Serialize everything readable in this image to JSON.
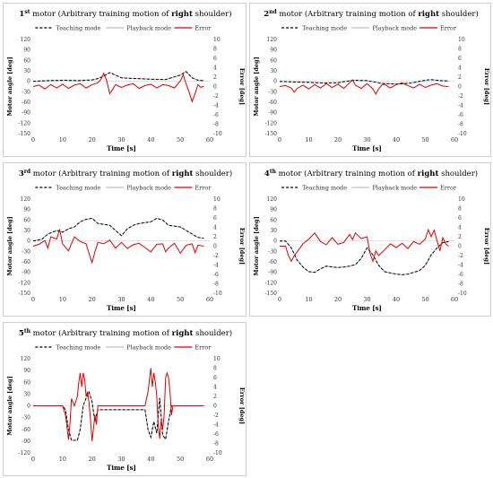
{
  "charts": [
    {
      "type": "line",
      "title_ordinal": "1",
      "title_sup": "st",
      "title_pre": " motor (Arbitrary training motion of ",
      "title_bold": "right",
      "title_post": " shoulder)",
      "xlabel": "Time [s]",
      "ylabel": "Motor angle [deg]",
      "y2label": "Error [deg]",
      "xlim": [
        0,
        60
      ],
      "ylim": [
        -150,
        120
      ],
      "y2lim": [
        -10,
        10
      ],
      "xticks": [
        "0",
        "10",
        "20",
        "30",
        "40",
        "50",
        "60"
      ],
      "yticks": [
        "120",
        "90",
        "60",
        "30",
        "0",
        "-30",
        "-60",
        "-90",
        "-120",
        "-150"
      ],
      "y2ticks": [
        "10",
        "8",
        "6",
        "4",
        "2",
        "0",
        "-2",
        "-4",
        "-6",
        "-8",
        "-10"
      ],
      "legend": [
        "Teaching mode",
        "Playback mode",
        "Error"
      ],
      "legend_position": "top",
      "teaching": {
        "x": [
          0,
          5,
          10,
          15,
          20,
          22,
          24,
          26,
          28,
          30,
          35,
          40,
          45,
          50,
          52,
          54,
          56,
          58
        ],
        "y": [
          0,
          2,
          3,
          2,
          4,
          8,
          15,
          25,
          18,
          10,
          8,
          6,
          5,
          18,
          28,
          10,
          3,
          2
        ]
      },
      "error": {
        "x": [
          0,
          2,
          4,
          6,
          8,
          10,
          12,
          14,
          16,
          18,
          20,
          22,
          23,
          24,
          25,
          26,
          27,
          28,
          30,
          32,
          34,
          36,
          38,
          40,
          42,
          44,
          46,
          48,
          50,
          51,
          52,
          53,
          54,
          55,
          56,
          57,
          58
        ],
        "y": [
          0,
          0.3,
          -0.5,
          0.4,
          -0.3,
          0.5,
          -0.4,
          0.3,
          0.6,
          -0.3,
          0.4,
          0.8,
          1.5,
          2.8,
          1.2,
          -1.5,
          -0.6,
          0.4,
          -0.2,
          0.3,
          0.6,
          -0.4,
          0.2,
          0.5,
          -0.3,
          0.4,
          0.2,
          -0.3,
          1.2,
          2.5,
          0.5,
          -1.2,
          -3.2,
          -1.5,
          0.4,
          -0.2,
          0.1
        ]
      }
    },
    {
      "type": "line",
      "title_ordinal": "2",
      "title_sup": "nd",
      "title_pre": " motor (Arbitrary training motion of ",
      "title_bold": "right",
      "title_post": " shoulder)",
      "xlabel": "Time [s]",
      "ylabel": "Motor angle [deg]",
      "y2label": "Error [deg]",
      "xlim": [
        0,
        60
      ],
      "ylim": [
        -150,
        120
      ],
      "y2lim": [
        -10,
        10
      ],
      "xticks": [
        "0",
        "10",
        "20",
        "30",
        "40",
        "50",
        "60"
      ],
      "yticks": [
        "120",
        "90",
        "60",
        "30",
        "0",
        "-30",
        "-60",
        "-90",
        "-120",
        "-150"
      ],
      "y2ticks": [
        "10",
        "8",
        "6",
        "4",
        "2",
        "0",
        "-2",
        "-4",
        "-6",
        "-8",
        "-10"
      ],
      "legend": [
        "Teaching mode",
        "Playback mode",
        "Error"
      ],
      "legend_position": "top",
      "teaching": {
        "x": [
          0,
          5,
          10,
          15,
          20,
          25,
          30,
          35,
          40,
          45,
          50,
          52,
          55,
          58
        ],
        "y": [
          0,
          -2,
          -3,
          -5,
          -4,
          3,
          2,
          -6,
          -8,
          -5,
          3,
          5,
          2,
          1
        ]
      },
      "error": {
        "x": [
          0,
          2,
          4,
          5,
          6,
          8,
          10,
          12,
          14,
          16,
          18,
          20,
          22,
          24,
          25,
          26,
          28,
          30,
          32,
          33,
          34,
          35,
          36,
          38,
          40,
          42,
          44,
          46,
          48,
          50,
          52,
          54,
          56,
          58
        ],
        "y": [
          0,
          0.2,
          -0.3,
          -1.2,
          -0.4,
          0.3,
          -0.5,
          0.4,
          -0.3,
          0.6,
          -0.2,
          0.5,
          -0.4,
          0.8,
          1.4,
          0.3,
          -0.4,
          0.6,
          -0.5,
          -1.6,
          -0.5,
          0.3,
          0.5,
          -0.3,
          0.4,
          0.8,
          0.2,
          -0.3,
          0.5,
          -0.2,
          0.3,
          0.6,
          0.1,
          0
        ]
      }
    },
    {
      "type": "line",
      "title_ordinal": "3",
      "title_sup": "rd",
      "title_pre": " motor (Arbitrary training motion of ",
      "title_bold": "right",
      "title_post": " shoulder)",
      "xlabel": "Time [s]",
      "ylabel": "Motor angle [deg]",
      "y2label": "Error [deg]",
      "xlim": [
        0,
        60
      ],
      "ylim": [
        -150,
        120
      ],
      "y2lim": [
        -10,
        10
      ],
      "xticks": [
        "0",
        "10",
        "20",
        "30",
        "40",
        "50",
        "60"
      ],
      "yticks": [
        "120",
        "90",
        "60",
        "30",
        "0",
        "-30",
        "-60",
        "-90",
        "-120",
        "-150"
      ],
      "y2ticks": [
        "10",
        "8",
        "6",
        "4",
        "2",
        "0",
        "-2",
        "-4",
        "-6",
        "-8",
        "-10"
      ],
      "legend": [
        "Teaching mode",
        "Playback mode",
        "Error"
      ],
      "legend_position": "top",
      "teaching": {
        "x": [
          0,
          3,
          5,
          8,
          10,
          12,
          14,
          16,
          18,
          20,
          22,
          26,
          28,
          30,
          32,
          34,
          36,
          40,
          42,
          44,
          46,
          50,
          52,
          54,
          56,
          58
        ],
        "y": [
          0,
          5,
          20,
          30,
          25,
          35,
          40,
          55,
          62,
          65,
          50,
          45,
          30,
          15,
          35,
          45,
          50,
          55,
          65,
          60,
          45,
          40,
          30,
          20,
          10,
          8
        ]
      },
      "error": {
        "x": [
          0,
          2,
          4,
          5,
          6,
          8,
          9,
          10,
          12,
          14,
          16,
          18,
          19,
          20,
          21,
          22,
          24,
          26,
          28,
          30,
          32,
          34,
          36,
          38,
          40,
          42,
          44,
          45,
          46,
          48,
          50,
          52,
          54,
          55,
          56,
          58
        ],
        "y": [
          0,
          0.4,
          1.2,
          -0.4,
          2,
          1.5,
          3.6,
          0.5,
          -1,
          2,
          1,
          0.5,
          -1.6,
          -3.5,
          -1.2,
          0.8,
          0.5,
          1.3,
          -0.4,
          0.8,
          -0.5,
          0.3,
          0.6,
          -0.3,
          -1.2,
          0.4,
          0.5,
          -1.2,
          -0.4,
          0.6,
          -1.5,
          0.2,
          0.5,
          -1.4,
          0.2,
          0
        ]
      }
    },
    {
      "type": "line",
      "title_ordinal": "4",
      "title_sup": "th",
      "title_pre": " motor (Arbitrary training motion of ",
      "title_bold": "right",
      "title_post": " shoulder)",
      "xlabel": "Time [s]",
      "ylabel": "Motor angle [deg]",
      "y2label": "Error [deg]",
      "xlim": [
        0,
        60
      ],
      "ylim": [
        -150,
        120
      ],
      "y2lim": [
        -10,
        10
      ],
      "xticks": [
        "0",
        "10",
        "20",
        "30",
        "40",
        "50",
        "60"
      ],
      "yticks": [
        "120",
        "90",
        "60",
        "30",
        "0",
        "-30",
        "-60",
        "-90",
        "-120",
        "-150"
      ],
      "y2ticks": [
        "10",
        "8",
        "6",
        "4",
        "2",
        "0",
        "-2",
        "-4",
        "-6",
        "-8",
        "-10"
      ],
      "legend": [
        "Teaching mode",
        "Playback mode",
        "Error"
      ],
      "legend_position": "top",
      "teaching": {
        "x": [
          0,
          2,
          4,
          6,
          8,
          10,
          12,
          14,
          16,
          18,
          20,
          22,
          24,
          26,
          28,
          30,
          32,
          34,
          36,
          38,
          40,
          42,
          44,
          46,
          48,
          50,
          52,
          54,
          56,
          58
        ],
        "y": [
          0,
          0,
          -20,
          -55,
          -75,
          -88,
          -90,
          -80,
          -72,
          -75,
          -76,
          -75,
          -72,
          -68,
          -50,
          -20,
          -40,
          -70,
          -88,
          -92,
          -95,
          -97,
          -95,
          -90,
          -85,
          -70,
          -40,
          -20,
          -5,
          -2
        ]
      },
      "error": {
        "x": [
          0,
          2,
          3,
          4,
          5,
          6,
          8,
          10,
          12,
          14,
          16,
          18,
          20,
          22,
          24,
          25,
          26,
          28,
          30,
          31,
          32,
          33,
          34,
          36,
          38,
          40,
          42,
          44,
          46,
          48,
          50,
          51,
          52,
          53,
          54,
          55,
          56,
          57,
          58
        ],
        "y": [
          0,
          0,
          -2,
          -3.2,
          -2,
          -1.2,
          0.5,
          1.5,
          2.8,
          1,
          0.3,
          1.8,
          0.4,
          0.8,
          2.5,
          1.4,
          2.8,
          1.6,
          2,
          -1.5,
          -3.2,
          -1,
          -2,
          -0.8,
          0.5,
          -0.3,
          0.6,
          -0.5,
          1,
          0.4,
          1.5,
          3.5,
          2,
          3.4,
          1.2,
          -1,
          1.8,
          0.5,
          0
        ]
      }
    },
    {
      "type": "line",
      "title_ordinal": "5",
      "title_sup": "th",
      "title_pre": " motor (Arbitrary training motion of ",
      "title_bold": "right",
      "title_post": " shoulder)",
      "xlabel": "Time [s]",
      "ylabel": "Motor angle [deg]",
      "y2label": "Error [deg]",
      "xlim": [
        0,
        60
      ],
      "ylim": [
        -120,
        120
      ],
      "y2lim": [
        -10,
        10
      ],
      "xticks": [
        "0",
        "10",
        "20",
        "30",
        "40",
        "50",
        "60"
      ],
      "yticks": [
        "120",
        "90",
        "60",
        "30",
        "0",
        "-30",
        "-60",
        "-90",
        "-120"
      ],
      "y2ticks": [
        "10",
        "8",
        "6",
        "4",
        "2",
        "0",
        "-2",
        "-4",
        "-6",
        "-8",
        "-10"
      ],
      "legend": [
        "Teaching mode",
        "Playback mode",
        "Error"
      ],
      "legend_position": "top",
      "teaching": {
        "x": [
          0,
          10,
          11,
          12,
          13,
          14,
          15,
          16,
          17,
          18,
          19,
          20,
          21,
          22,
          23,
          30,
          35,
          38,
          39,
          40,
          41,
          42,
          43,
          44,
          45,
          46,
          47,
          48,
          50,
          55,
          58
        ],
        "y": [
          0,
          0,
          -10,
          -60,
          -88,
          -88,
          -88,
          -60,
          0,
          20,
          35,
          10,
          -40,
          -10,
          -10,
          -10,
          -10,
          -10,
          -60,
          -80,
          -40,
          -70,
          20,
          -75,
          -85,
          -40,
          0,
          0,
          0,
          0,
          0
        ]
      },
      "error": {
        "x": [
          0,
          10,
          11,
          12,
          12.5,
          13,
          14,
          15,
          15.5,
          16,
          16.5,
          17,
          17.5,
          18,
          18.5,
          19,
          19.5,
          20,
          21,
          21.5,
          22,
          23,
          30,
          38,
          39,
          40,
          40.5,
          41,
          41.5,
          42,
          42.5,
          43,
          43.5,
          44,
          44.5,
          45,
          45.5,
          46,
          46.5,
          47,
          47.5,
          48,
          50,
          58
        ],
        "y": [
          0,
          0,
          -2,
          -7.2,
          -4,
          1.5,
          0,
          2,
          5,
          7,
          4,
          7,
          5.5,
          2,
          3,
          0.5,
          -3,
          -7.5,
          -2,
          -4,
          0,
          0,
          0,
          0,
          3,
          8,
          4,
          7,
          5,
          2,
          -4,
          -7,
          -3,
          -5,
          -2,
          6,
          7,
          6,
          3,
          -2,
          0,
          0,
          0,
          0
        ]
      }
    }
  ]
}
